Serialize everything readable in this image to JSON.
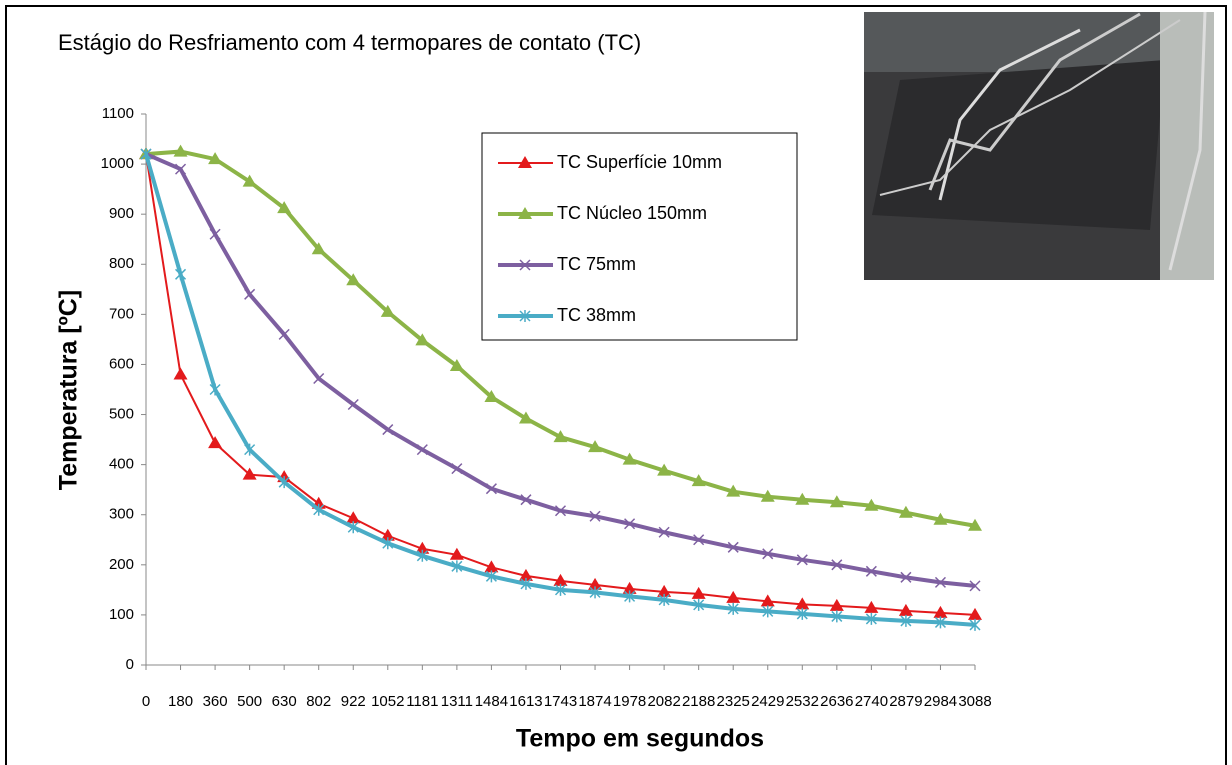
{
  "chart_data": {
    "type": "line",
    "title": "Estágio do Resfriamento com 4 termopares de contato (TC)",
    "x_label": "Tempo em segundos",
    "y_label": "Temperatura  [ºC]",
    "categories": [
      "0",
      "180",
      "360",
      "500",
      "630",
      "802",
      "922",
      "1052",
      "1181",
      "1311",
      "1484",
      "1613",
      "1743",
      "1874",
      "1978",
      "2082",
      "2188",
      "2325",
      "2429",
      "2532",
      "2636",
      "2740",
      "2879",
      "2984",
      "3088"
    ],
    "ylim": [
      0,
      1100
    ],
    "yticks": [
      0,
      100,
      200,
      300,
      400,
      500,
      600,
      700,
      800,
      900,
      1000,
      1100
    ],
    "series": [
      {
        "name": "TC Superfície 10mm",
        "color": "#e31a1c",
        "marker": "triangle",
        "values": [
          1020,
          580,
          443,
          380,
          375,
          322,
          293,
          258,
          232,
          220,
          195,
          178,
          168,
          160,
          152,
          146,
          142,
          134,
          127,
          121,
          118,
          114,
          108,
          104,
          100
        ]
      },
      {
        "name": "TC Núcleo 150mm",
        "color": "#8cb447",
        "marker": "triangle",
        "values": [
          1020,
          1025,
          1010,
          965,
          912,
          830,
          768,
          705,
          648,
          597,
          535,
          492,
          455,
          435,
          410,
          388,
          367,
          346,
          336,
          330,
          325,
          318,
          304,
          290,
          278
        ]
      },
      {
        "name": "TC 75mm",
        "color": "#7d5fa0",
        "marker": "x",
        "values": [
          1020,
          990,
          860,
          740,
          660,
          572,
          520,
          470,
          430,
          392,
          352,
          330,
          308,
          297,
          282,
          265,
          250,
          235,
          222,
          210,
          200,
          187,
          175,
          165,
          158
        ]
      },
      {
        "name": "TC 38mm",
        "color": "#4aacc6",
        "marker": "star",
        "values": [
          1020,
          780,
          550,
          430,
          365,
          310,
          275,
          243,
          218,
          197,
          177,
          162,
          150,
          145,
          137,
          130,
          120,
          112,
          107,
          102,
          97,
          92,
          88,
          85,
          80
        ]
      }
    ]
  }
}
